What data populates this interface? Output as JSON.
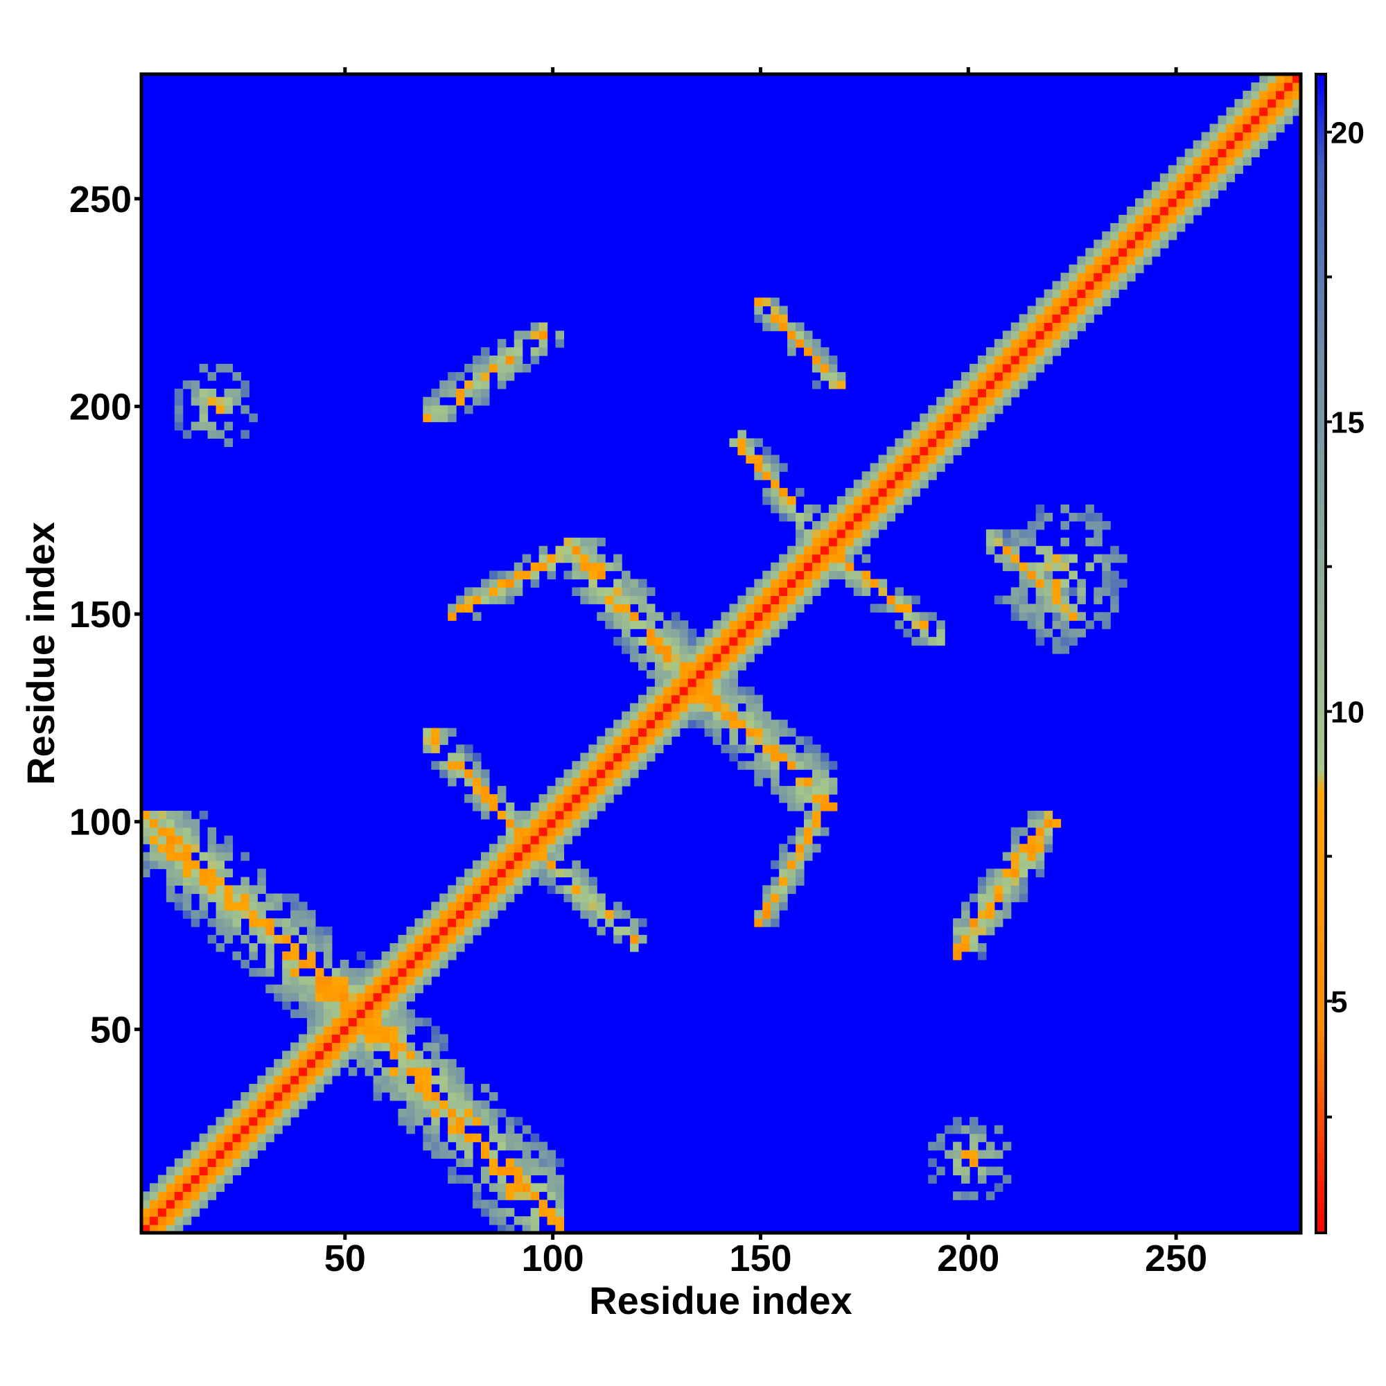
{
  "chart_data": {
    "type": "heatmap",
    "title": "",
    "xlabel": "Residue index",
    "ylabel": "Residue index",
    "xlim": [
      1,
      280
    ],
    "ylim": [
      1,
      280
    ],
    "x_ticks": [
      50,
      100,
      150,
      200,
      250
    ],
    "y_ticks": [
      50,
      100,
      150,
      200,
      250
    ],
    "x_tick_labels": [
      "50",
      "100",
      "150",
      "200",
      "250"
    ],
    "y_tick_labels": [
      "50",
      "100",
      "150",
      "200",
      "250"
    ],
    "colorbar": {
      "range": [
        1,
        21
      ],
      "ticks": [
        5,
        10,
        15,
        20
      ],
      "tick_labels": [
        "5",
        "10",
        "15",
        "20"
      ],
      "colors": [
        "#ff0000",
        "#ff8c00",
        "#a8c88a",
        "#6f90a8",
        "#0000ff"
      ]
    },
    "background_value": 21,
    "diagonal": {
      "center_value": 1.5,
      "width_residues": 6
    },
    "contact_regions": [
      {
        "x": [
          1,
          63
        ],
        "y": [
          45,
          102
        ],
        "orientation": "antiparallel"
      },
      {
        "x": [
          45,
          103
        ],
        "y": [
          1,
          63
        ],
        "orientation": "antiparallel"
      },
      {
        "x": [
          69,
          102
        ],
        "y": [
          197,
          221
        ],
        "orientation": "parallel"
      },
      {
        "x": [
          197,
          221
        ],
        "y": [
          69,
          102
        ],
        "orientation": "parallel"
      },
      {
        "x": [
          76,
          106
        ],
        "y": [
          150,
          167
        ],
        "orientation": "parallel"
      },
      {
        "x": [
          150,
          167
        ],
        "y": [
          76,
          106
        ],
        "orientation": "parallel"
      },
      {
        "x": [
          70,
          95
        ],
        "y": [
          95,
          122
        ],
        "orientation": "antiparallel"
      },
      {
        "x": [
          95,
          122
        ],
        "y": [
          70,
          95
        ],
        "orientation": "antiparallel"
      },
      {
        "x": [
          104,
          145
        ],
        "y": [
          123,
          168
        ],
        "orientation": "antiparallel"
      },
      {
        "x": [
          123,
          168
        ],
        "y": [
          104,
          145
        ],
        "orientation": "antiparallel"
      },
      {
        "x": [
          143,
          164
        ],
        "y": [
          170,
          195
        ],
        "orientation": "antiparallel"
      },
      {
        "x": [
          170,
          195
        ],
        "y": [
          143,
          164
        ],
        "orientation": "antiparallel"
      },
      {
        "x": [
          150,
          170
        ],
        "y": [
          205,
          227
        ],
        "orientation": "antiparallel"
      },
      {
        "x": [
          205,
          227
        ],
        "y": [
          150,
          170
        ],
        "orientation": "antiparallel"
      },
      {
        "x": [
          152,
          165
        ],
        "y": [
          78,
          103
        ],
        "orientation": "parallel"
      },
      {
        "x": [
          78,
          103
        ],
        "y": [
          152,
          165
        ],
        "orientation": "parallel"
      },
      {
        "x": [
          7,
          30
        ],
        "y": [
          190,
          212
        ],
        "orientation": "diffuse"
      },
      {
        "x": [
          190,
          212
        ],
        "y": [
          7,
          30
        ],
        "orientation": "diffuse"
      },
      {
        "x": [
          198,
          222
        ],
        "y": [
          68,
          102
        ],
        "orientation": "parallel"
      },
      {
        "x": [
          205,
          240
        ],
        "y": [
          140,
          180
        ],
        "orientation": "diffuse"
      }
    ]
  }
}
